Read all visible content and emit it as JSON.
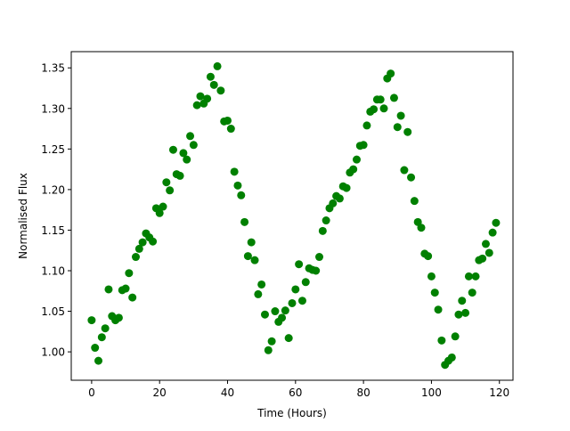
{
  "chart_data": {
    "type": "scatter",
    "title": "",
    "xlabel": "Time (Hours)",
    "ylabel": "Normalised Flux",
    "xlim": [
      -6,
      124
    ],
    "ylim": [
      0.965,
      1.37
    ],
    "xticks": [
      0,
      20,
      40,
      60,
      80,
      100,
      120
    ],
    "xtick_labels": [
      "0",
      "20",
      "40",
      "60",
      "80",
      "100",
      "120"
    ],
    "yticks": [
      1.0,
      1.05,
      1.1,
      1.15,
      1.2,
      1.25,
      1.3,
      1.35
    ],
    "ytick_labels": [
      "1.00",
      "1.05",
      "1.10",
      "1.15",
      "1.20",
      "1.25",
      "1.30",
      "1.35"
    ],
    "grid": false,
    "legend": "none",
    "marker_color": "#008000",
    "series": [
      {
        "x": [
          0,
          1,
          2,
          3,
          4,
          5,
          6,
          7,
          8,
          9,
          10,
          11,
          12,
          13,
          14,
          15,
          16,
          17,
          18,
          19,
          20,
          21,
          22,
          23,
          24,
          25,
          26,
          27,
          28,
          29,
          30,
          31,
          32,
          33,
          34,
          35,
          36,
          37,
          38,
          39,
          40,
          41,
          42,
          43,
          44,
          45,
          46,
          47,
          48,
          49,
          50,
          51,
          52,
          53,
          54,
          55,
          56,
          57,
          58,
          59,
          60,
          61,
          62,
          63,
          64,
          65,
          66,
          67,
          68,
          69,
          70,
          71,
          72,
          73,
          74,
          75,
          76,
          77,
          78,
          79,
          80,
          81,
          82,
          83,
          84,
          85,
          86,
          87,
          88,
          89,
          90,
          91,
          92,
          93,
          94,
          95,
          96,
          97,
          98,
          99,
          100,
          101,
          102,
          103,
          104,
          105,
          106,
          107,
          108,
          109,
          110,
          111,
          112,
          113,
          114,
          115,
          116,
          117,
          118,
          119
        ],
        "y": [
          1.039,
          1.005,
          0.989,
          1.018,
          1.029,
          1.077,
          1.044,
          1.039,
          1.042,
          1.076,
          1.078,
          1.097,
          1.067,
          1.117,
          1.127,
          1.135,
          1.146,
          1.141,
          1.136,
          1.177,
          1.171,
          1.179,
          1.209,
          1.199,
          1.249,
          1.219,
          1.217,
          1.245,
          1.237,
          1.266,
          1.255,
          1.304,
          1.315,
          1.306,
          1.312,
          1.339,
          1.329,
          1.352,
          1.322,
          1.284,
          1.285,
          1.275,
          1.222,
          1.205,
          1.193,
          1.16,
          1.118,
          1.135,
          1.113,
          1.071,
          1.083,
          1.046,
          1.002,
          1.013,
          1.05,
          1.037,
          1.042,
          1.051,
          1.017,
          1.06,
          1.077,
          1.108,
          1.063,
          1.086,
          1.103,
          1.101,
          1.1,
          1.117,
          1.149,
          1.162,
          1.177,
          1.183,
          1.192,
          1.189,
          1.204,
          1.202,
          1.221,
          1.225,
          1.237,
          1.254,
          1.255,
          1.279,
          1.296,
          1.299,
          1.311,
          1.311,
          1.3,
          1.337,
          1.343,
          1.313,
          1.277,
          1.291,
          1.224,
          1.271,
          1.215,
          1.186,
          1.16,
          1.153,
          1.121,
          1.118,
          1.093,
          1.073,
          1.052,
          1.014,
          0.984,
          0.989,
          0.993,
          1.019,
          1.046,
          1.063,
          1.048,
          1.093,
          1.073,
          1.093,
          1.113,
          1.115,
          1.133,
          1.122,
          1.147,
          1.159
        ]
      }
    ]
  }
}
